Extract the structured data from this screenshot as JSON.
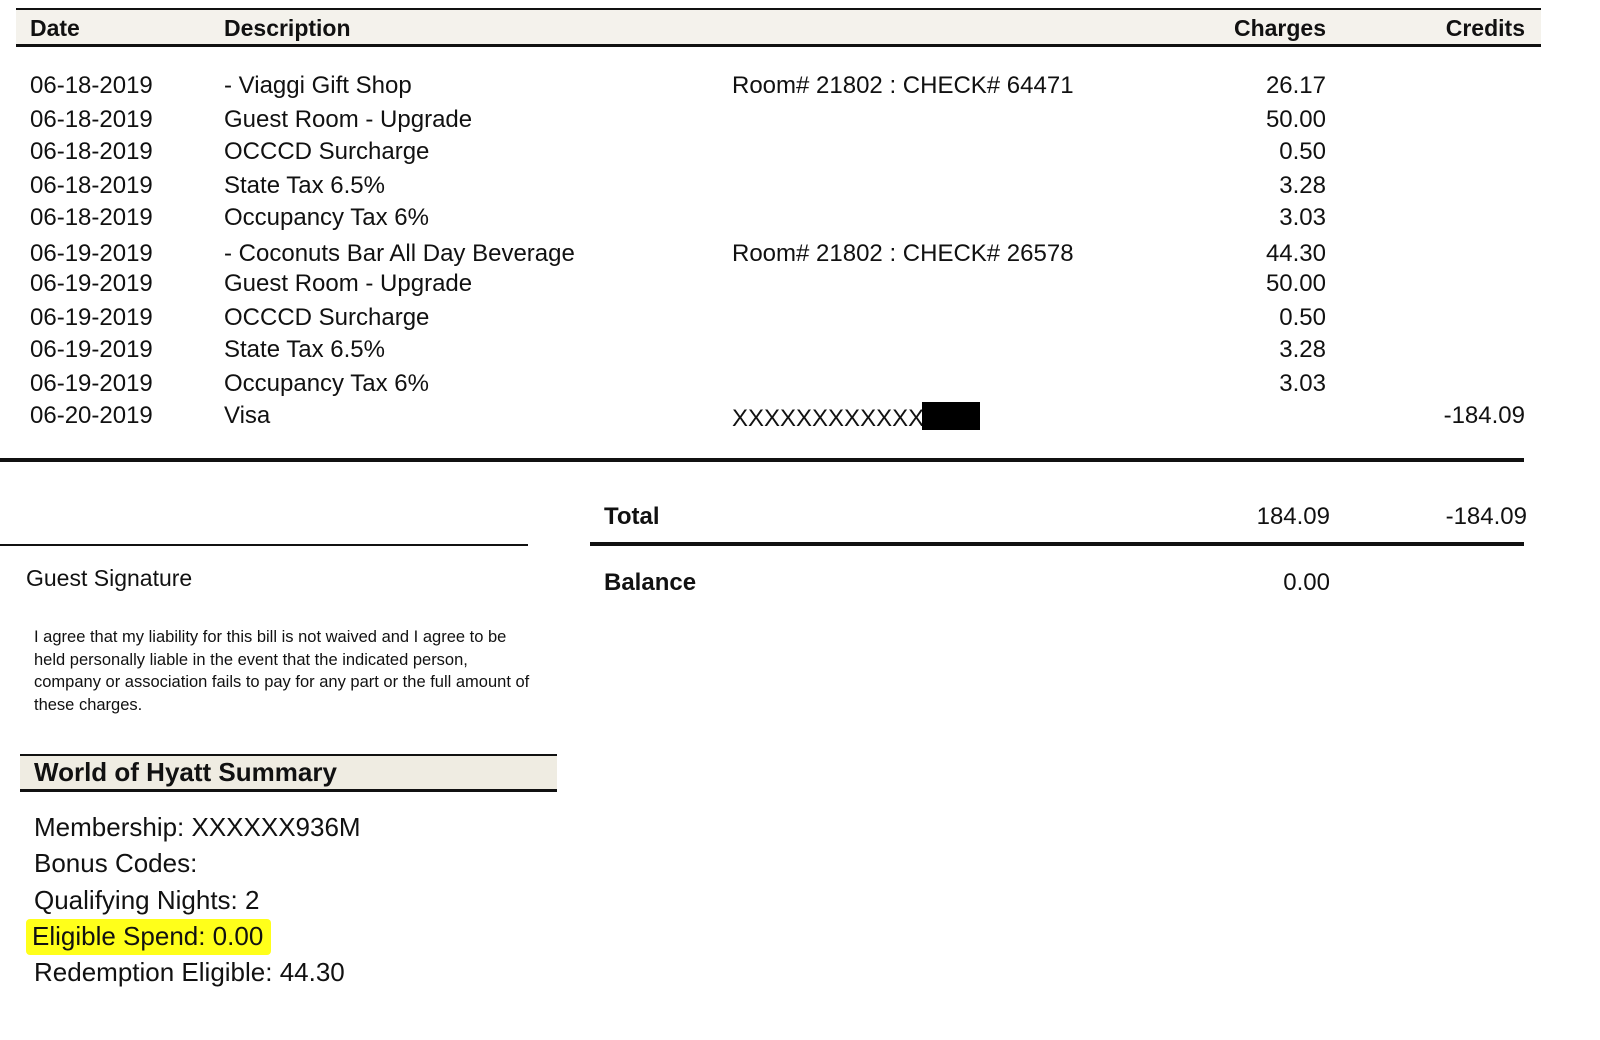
{
  "headers": {
    "date": "Date",
    "description": "Description",
    "charges": "Charges",
    "credits": "Credits"
  },
  "transactions": [
    {
      "date": "06-18-2019",
      "description": "- Viaggi Gift Shop",
      "reference": "Room# 21802 : CHECK# 64471",
      "charges": "26.17",
      "credits": ""
    },
    {
      "date": "06-18-2019",
      "description": "Guest Room - Upgrade",
      "reference": "",
      "charges": "50.00",
      "credits": ""
    },
    {
      "date": "06-18-2019",
      "description": "OCCCD Surcharge",
      "reference": "",
      "charges": "0.50",
      "credits": ""
    },
    {
      "date": "06-18-2019",
      "description": "State Tax 6.5%",
      "reference": "",
      "charges": "3.28",
      "credits": ""
    },
    {
      "date": "06-18-2019",
      "description": "Occupancy Tax 6%",
      "reference": "",
      "charges": "3.03",
      "credits": ""
    },
    {
      "date": "06-19-2019",
      "description": "- Coconuts Bar All Day Beverage",
      "reference": "Room# 21802 : CHECK# 26578",
      "charges": "44.30",
      "credits": ""
    },
    {
      "date": "06-19-2019",
      "description": "Guest Room - Upgrade",
      "reference": "",
      "charges": "50.00",
      "credits": ""
    },
    {
      "date": "06-19-2019",
      "description": "OCCCD Surcharge",
      "reference": "",
      "charges": "0.50",
      "credits": ""
    },
    {
      "date": "06-19-2019",
      "description": "State Tax 6.5%",
      "reference": "",
      "charges": "3.28",
      "credits": ""
    },
    {
      "date": "06-19-2019",
      "description": "Occupancy Tax 6%",
      "reference": "",
      "charges": "3.03",
      "credits": ""
    },
    {
      "date": "06-20-2019",
      "description": "Visa",
      "reference": "XXXXXXXXXXXX",
      "charges": "",
      "credits": "-184.09"
    }
  ],
  "totals": {
    "total_label": "Total",
    "total_charges": "184.09",
    "total_credits": "-184.09",
    "balance_label": "Balance",
    "balance_value": "0.00"
  },
  "signature": {
    "label": "Guest Signature",
    "disclaimer": "I agree that my liability for this bill is not waived and I agree to be held personally liable in the event that the indicated person, company or association fails to pay for any part or the full amount of these charges."
  },
  "world_of_hyatt": {
    "title": "World of Hyatt Summary",
    "membership": "Membership: XXXXXX936M",
    "bonus_codes": "Bonus Codes:",
    "qualifying_nights": "Qualifying Nights: 2",
    "eligible_spend": "Eligible Spend: 0.00",
    "redemption_eligible": "Redemption Eligible: 44.30"
  },
  "colors": {
    "highlight": "#ffff1a",
    "header_bg": "#f4f2ec",
    "text": "#111111"
  }
}
